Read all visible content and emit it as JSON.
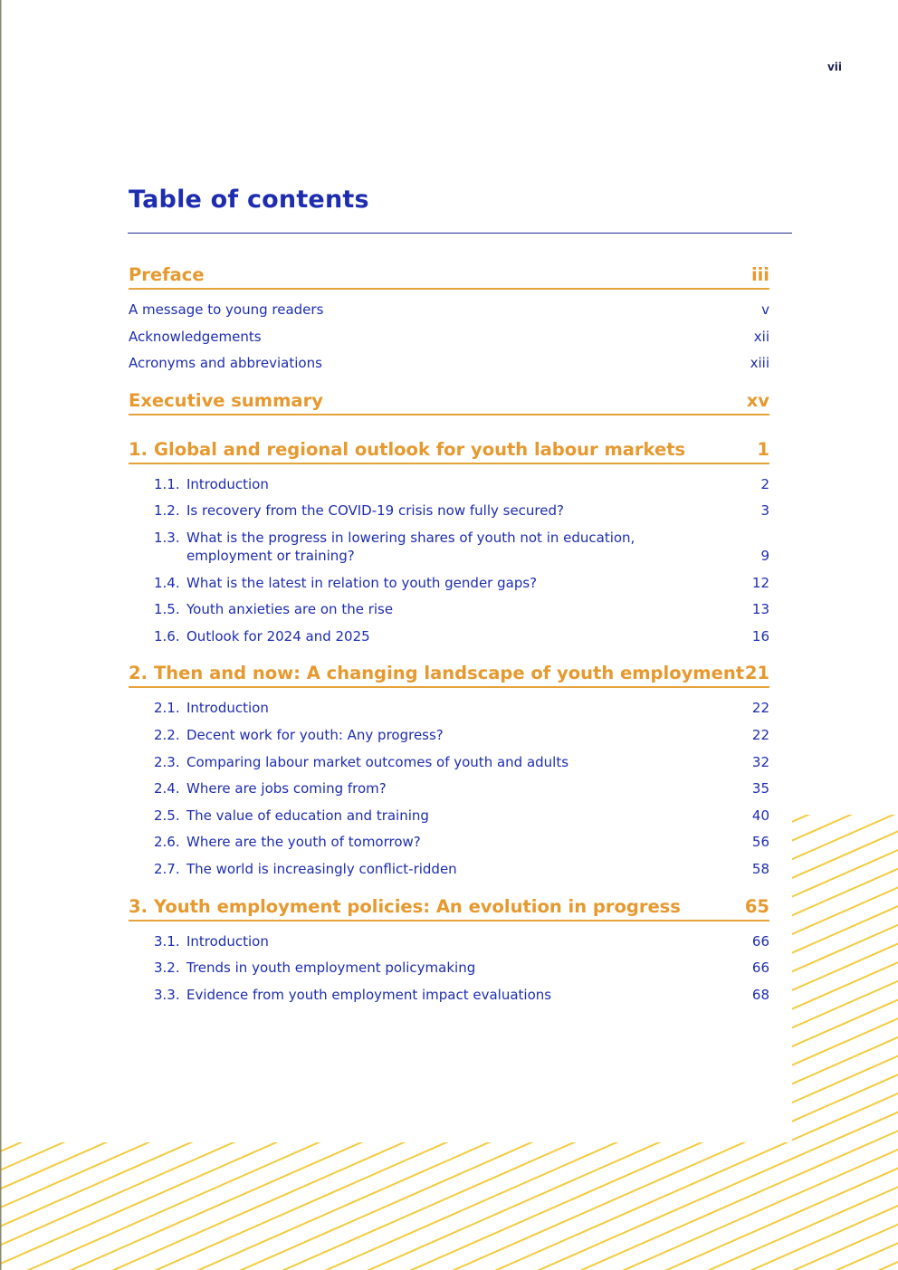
{
  "page_number": "vii",
  "title": "Table of contents",
  "colors": {
    "title": "#1e2db0",
    "section": "#e6992e",
    "stripes": "#f2cc3f"
  },
  "sections": [
    {
      "number": "",
      "label": "Preface",
      "page": "iii",
      "items": [
        {
          "number": "",
          "label": "A message to young readers",
          "page": "v"
        },
        {
          "number": "",
          "label": "Acknowledgements",
          "page": "xii"
        },
        {
          "number": "",
          "label": "Acronyms and abbreviations",
          "page": "xiii"
        }
      ]
    },
    {
      "number": "",
      "label": "Executive summary",
      "page": "xv",
      "items": []
    },
    {
      "number": "1.",
      "label": "Global and regional outlook for youth labour markets",
      "page": "1",
      "items": [
        {
          "number": "1.1.",
          "label": "Introduction",
          "page": "2"
        },
        {
          "number": "1.2.",
          "label": "Is recovery from the COVID-19 crisis now fully secured?",
          "page": "3"
        },
        {
          "number": "1.3.",
          "label": "What is the progress in lowering shares of youth not in education, employment or training?",
          "page": "9"
        },
        {
          "number": "1.4.",
          "label": "What is the latest in relation to youth gender gaps?",
          "page": "12"
        },
        {
          "number": "1.5.",
          "label": "Youth anxieties are on the rise",
          "page": "13"
        },
        {
          "number": "1.6.",
          "label": "Outlook for 2024 and 2025",
          "page": "16"
        }
      ]
    },
    {
      "number": "2.",
      "label": "Then and now: A changing landscape of youth employment",
      "page": "21",
      "items": [
        {
          "number": "2.1.",
          "label": "Introduction",
          "page": "22"
        },
        {
          "number": "2.2.",
          "label": "Decent work for youth: Any progress?",
          "page": "22"
        },
        {
          "number": "2.3.",
          "label": "Comparing labour market outcomes of youth and adults",
          "page": "32"
        },
        {
          "number": "2.4.",
          "label": "Where are jobs coming from?",
          "page": "35"
        },
        {
          "number": "2.5.",
          "label": "The value of education and training",
          "page": "40"
        },
        {
          "number": "2.6.",
          "label": "Where are the youth of tomorrow?",
          "page": "56"
        },
        {
          "number": "2.7.",
          "label": "The world is increasingly conflict-ridden",
          "page": "58"
        }
      ]
    },
    {
      "number": "3.",
      "label": "Youth employment policies: An evolution in progress",
      "page": "65",
      "items": [
        {
          "number": "3.1.",
          "label": "Introduction",
          "page": "66"
        },
        {
          "number": "3.2.",
          "label": "Trends in youth employment policymaking",
          "page": "66"
        },
        {
          "number": "3.3.",
          "label": "Evidence from youth employment impact evaluations",
          "page": "68"
        }
      ]
    }
  ]
}
